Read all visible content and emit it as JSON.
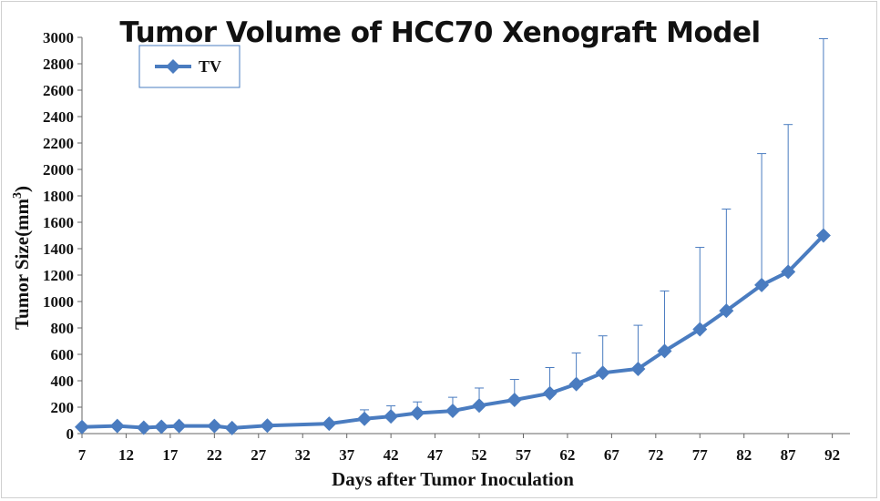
{
  "chart_data": {
    "type": "line",
    "title": "Tumor Volume of HCC70 Xenograft Model",
    "xlabel": "Days after Tumor Inoculation",
    "ylabel": "Tumor Size(mm",
    "ylabel_superscript": "3",
    "ylabel_suffix": ")",
    "xlim": [
      7,
      94
    ],
    "ylim": [
      0,
      3000
    ],
    "x_ticks": [
      7,
      12,
      17,
      22,
      27,
      32,
      37,
      42,
      47,
      52,
      57,
      62,
      67,
      72,
      77,
      82,
      87,
      92
    ],
    "y_ticks": [
      0,
      200,
      400,
      600,
      800,
      1000,
      1200,
      1400,
      1600,
      1800,
      2000,
      2200,
      2400,
      2600,
      2800,
      3000
    ],
    "grid": false,
    "legend_position": "top-left",
    "color": "#4a7cc0",
    "series": [
      {
        "name": "TV",
        "x": [
          7,
          11,
          14,
          16,
          18,
          22,
          24,
          28,
          35,
          39,
          42,
          45,
          49,
          52,
          56,
          60,
          63,
          66,
          70,
          73,
          77,
          80,
          84,
          87,
          91
        ],
        "y": [
          50,
          58,
          45,
          52,
          58,
          58,
          42,
          60,
          75,
          112,
          130,
          155,
          172,
          212,
          255,
          305,
          375,
          460,
          490,
          625,
          790,
          930,
          1125,
          1225,
          1500
        ],
        "error_upper": [
          0,
          0,
          0,
          0,
          0,
          0,
          0,
          0,
          0,
          180,
          210,
          240,
          275,
          345,
          410,
          500,
          610,
          740,
          820,
          1080,
          1410,
          1700,
          2120,
          2340,
          2990
        ]
      }
    ]
  }
}
